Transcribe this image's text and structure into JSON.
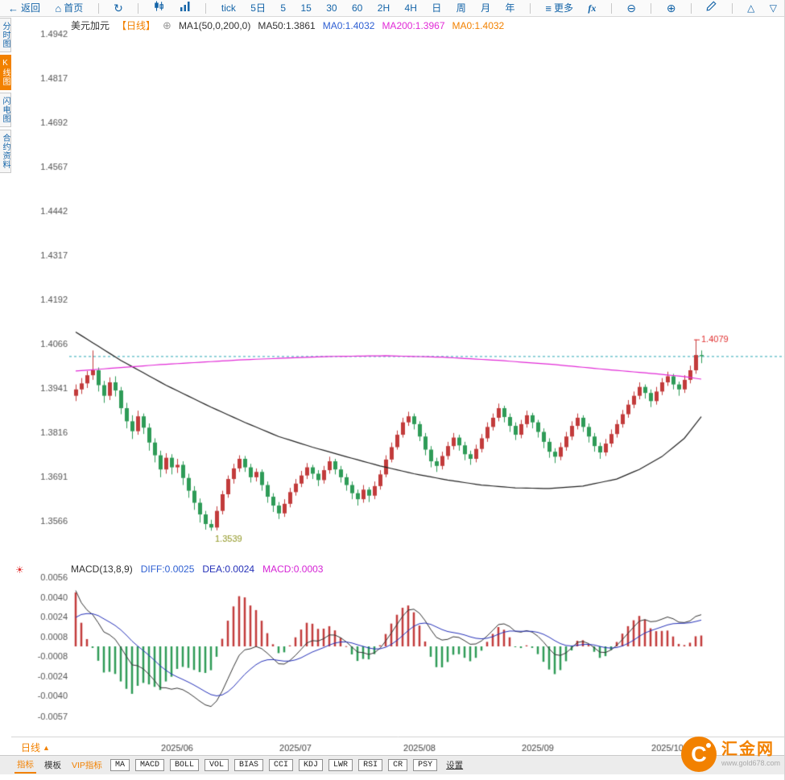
{
  "colors": {
    "accent-orange": "#f28100",
    "toolbar-blue": "#1464a8",
    "up-red": "#c23b3b",
    "down-green": "#2e9b57",
    "ma50-black": "#222222",
    "ma200-magenta": "#e12ad6",
    "diff-blue": "#2e5fd2",
    "dea-blue": "#2430b8",
    "macd-magenta": "#d524d5",
    "last-price-teal": "#2aa7b5",
    "annotation-red": "#e03131",
    "annotation-olive": "#8f9520",
    "axis-text": "#555555",
    "date-text": "#444444"
  },
  "icons": {
    "back": "←",
    "home": "⌂",
    "refresh": "↻",
    "menu": "≡",
    "zoom_out": "⊖",
    "zoom_in": "⊕",
    "up": "△",
    "down": "▽",
    "add": "⊕",
    "sun": "☀",
    "dropdown_up": "▲",
    "brand_mark": "C"
  },
  "top_toolbar": {
    "back": "返回",
    "home": "首页",
    "intervals": [
      "tick",
      "5日",
      "5",
      "15",
      "30",
      "60",
      "2H",
      "4H",
      "日",
      "周",
      "月",
      "年"
    ],
    "more": "更多",
    "fx": "fx"
  },
  "side_tabs": [
    {
      "label": "分时图",
      "active": false
    },
    {
      "label": "K线图",
      "active": true
    },
    {
      "label": "闪电图",
      "active": false
    },
    {
      "label": "合约资料",
      "active": false
    }
  ],
  "chart_header": {
    "symbol": "美元加元",
    "period": "【日线】",
    "ma_settings": "MA1(50,0,200,0)",
    "ma_values": [
      {
        "text": "MA50:1.3861"
      },
      {
        "text": "MA0:1.4032"
      },
      {
        "text": "MA200:1.3967"
      },
      {
        "text": "MA0:1.4032"
      }
    ]
  },
  "macd_header": {
    "title": "MACD(13,8,9)",
    "values": [
      {
        "text": "DIFF:0.0025"
      },
      {
        "text": "DEA:0.0024"
      },
      {
        "text": "MACD:0.0003"
      }
    ]
  },
  "bottom_axis": {
    "period_label": "日线"
  },
  "bottom_toolbar": {
    "tabs": [
      "指标",
      "模板",
      "VIP指标"
    ],
    "indicators": [
      "MA",
      "MACD",
      "BOLL",
      "VOL",
      "BIAS",
      "CCI",
      "KDJ",
      "LWR",
      "RSI",
      "CR",
      "PSY"
    ],
    "settings": "设置"
  },
  "logo": {
    "name": "汇金网",
    "url": "www.gold678.com"
  },
  "chart_data": {
    "type": "candlestick",
    "title": "美元加元 日线 (USD/CAD Daily)",
    "y_axis": {
      "ticks": [
        "1.4942",
        "1.4817",
        "1.4692",
        "1.4567",
        "1.4442",
        "1.4317",
        "1.4192",
        "1.4066",
        "1.3941",
        "1.3816",
        "1.3691",
        "1.3566"
      ],
      "tick_interval": 0.0125
    },
    "x_axis": {
      "labels": [
        {
          "i": 18,
          "t": "2025/06"
        },
        {
          "i": 39,
          "t": "2025/07"
        },
        {
          "i": 61,
          "t": "2025/08"
        },
        {
          "i": 82,
          "t": "2025/09"
        },
        {
          "i": 105,
          "t": "2025/10"
        }
      ]
    },
    "last_price": 1.4032,
    "annotations": [
      {
        "type": "high",
        "i": 110,
        "price": 1.4079,
        "text": "1.4079"
      },
      {
        "type": "low",
        "i": 24,
        "price": 1.3539,
        "text": "1.3539"
      }
    ],
    "overlays": {
      "ma50": {
        "current": 1.3861,
        "anchors": [
          [
            0,
            1.41
          ],
          [
            8,
            1.402
          ],
          [
            16,
            1.395
          ],
          [
            24,
            1.3888
          ],
          [
            30,
            1.3845
          ],
          [
            36,
            1.3805
          ],
          [
            42,
            1.3775
          ],
          [
            48,
            1.3748
          ],
          [
            54,
            1.3722
          ],
          [
            60,
            1.37
          ],
          [
            66,
            1.3682
          ],
          [
            72,
            1.3668
          ],
          [
            78,
            1.366
          ],
          [
            84,
            1.3658
          ],
          [
            90,
            1.3665
          ],
          [
            96,
            1.3685
          ],
          [
            100,
            1.3712
          ],
          [
            104,
            1.3748
          ],
          [
            108,
            1.38
          ],
          [
            111,
            1.3861
          ]
        ]
      },
      "ma200": {
        "current": 1.3967,
        "anchors": [
          [
            0,
            1.399
          ],
          [
            15,
            1.4008
          ],
          [
            30,
            1.4022
          ],
          [
            45,
            1.4031
          ],
          [
            55,
            1.4033
          ],
          [
            65,
            1.4029
          ],
          [
            75,
            1.402
          ],
          [
            85,
            1.4008
          ],
          [
            95,
            1.3993
          ],
          [
            103,
            1.3982
          ],
          [
            108,
            1.3974
          ],
          [
            111,
            1.3967
          ]
        ]
      }
    },
    "macd": {
      "diff": 0.0025,
      "dea": 0.0024,
      "macd": 0.0003,
      "ticks": [
        "0.0056",
        "0.0040",
        "0.0024",
        "0.0008",
        "-0.0008",
        "-0.0024",
        "-0.0040",
        "-0.0057"
      ],
      "periods": {
        "fast": 8,
        "slow": 13,
        "signal": 9
      },
      "seeds": {
        "ema_fast": 1.4015,
        "ema_slow": 1.3955,
        "dea": 0.0018
      }
    },
    "candles": [
      [
        1.392,
        1.3952,
        1.3905,
        1.3938
      ],
      [
        1.3938,
        1.397,
        1.3925,
        1.3955
      ],
      [
        1.3955,
        1.399,
        1.3942,
        1.3978
      ],
      [
        1.3978,
        1.4048,
        1.3965,
        1.3992
      ],
      [
        1.3992,
        1.4,
        1.3932,
        1.395
      ],
      [
        1.395,
        1.3962,
        1.39,
        1.392
      ],
      [
        1.392,
        1.3972,
        1.3908,
        1.3958
      ],
      [
        1.3958,
        1.3975,
        1.3918,
        1.3935
      ],
      [
        1.3935,
        1.3945,
        1.3868,
        1.3885
      ],
      [
        1.3885,
        1.39,
        1.3828,
        1.3848
      ],
      [
        1.3848,
        1.3865,
        1.3798,
        1.382
      ],
      [
        1.382,
        1.3878,
        1.381,
        1.3862
      ],
      [
        1.3862,
        1.387,
        1.3812,
        1.383
      ],
      [
        1.383,
        1.3842,
        1.3765,
        1.3788
      ],
      [
        1.3788,
        1.38,
        1.3732,
        1.3752
      ],
      [
        1.3752,
        1.3765,
        1.369,
        1.3712
      ],
      [
        1.3712,
        1.3758,
        1.37,
        1.3745
      ],
      [
        1.3745,
        1.3755,
        1.3698,
        1.3718
      ],
      [
        1.3718,
        1.3742,
        1.3702,
        1.3725
      ],
      [
        1.3725,
        1.3735,
        1.3668,
        1.3688
      ],
      [
        1.3688,
        1.37,
        1.3632,
        1.3652
      ],
      [
        1.3652,
        1.3665,
        1.3598,
        1.3618
      ],
      [
        1.3618,
        1.363,
        1.3562,
        1.3585
      ],
      [
        1.3585,
        1.3595,
        1.3542,
        1.3558
      ],
      [
        1.3558,
        1.357,
        1.3539,
        1.3548
      ],
      [
        1.3548,
        1.3608,
        1.354,
        1.3595
      ],
      [
        1.3595,
        1.3652,
        1.3585,
        1.3642
      ],
      [
        1.3642,
        1.3695,
        1.3632,
        1.3685
      ],
      [
        1.3685,
        1.3728,
        1.3672,
        1.3715
      ],
      [
        1.3715,
        1.3752,
        1.3705,
        1.3742
      ],
      [
        1.3742,
        1.375,
        1.3705,
        1.3718
      ],
      [
        1.3718,
        1.3728,
        1.3675,
        1.369
      ],
      [
        1.369,
        1.3715,
        1.3678,
        1.3705
      ],
      [
        1.3705,
        1.3712,
        1.3652,
        1.3668
      ],
      [
        1.3668,
        1.3678,
        1.3618,
        1.3635
      ],
      [
        1.3635,
        1.3645,
        1.3592,
        1.361
      ],
      [
        1.361,
        1.362,
        1.3572,
        1.3588
      ],
      [
        1.3588,
        1.3628,
        1.3578,
        1.3615
      ],
      [
        1.3615,
        1.366,
        1.3605,
        1.3648
      ],
      [
        1.3648,
        1.3685,
        1.3638,
        1.3672
      ],
      [
        1.3672,
        1.3708,
        1.3662,
        1.3695
      ],
      [
        1.3695,
        1.373,
        1.3685,
        1.3718
      ],
      [
        1.3718,
        1.3725,
        1.3685,
        1.37
      ],
      [
        1.37,
        1.371,
        1.3665,
        1.3682
      ],
      [
        1.3682,
        1.3722,
        1.3672,
        1.371
      ],
      [
        1.371,
        1.3748,
        1.37,
        1.3735
      ],
      [
        1.3735,
        1.3742,
        1.3698,
        1.3712
      ],
      [
        1.3712,
        1.3722,
        1.3675,
        1.369
      ],
      [
        1.369,
        1.37,
        1.3652,
        1.3668
      ],
      [
        1.3668,
        1.3678,
        1.3628,
        1.3645
      ],
      [
        1.3645,
        1.3655,
        1.361,
        1.3628
      ],
      [
        1.3628,
        1.3668,
        1.3618,
        1.3655
      ],
      [
        1.3655,
        1.3662,
        1.362,
        1.3638
      ],
      [
        1.3638,
        1.3678,
        1.3628,
        1.3665
      ],
      [
        1.3665,
        1.371,
        1.3655,
        1.3698
      ],
      [
        1.3698,
        1.3752,
        1.369,
        1.374
      ],
      [
        1.374,
        1.3788,
        1.3732,
        1.3775
      ],
      [
        1.3775,
        1.3822,
        1.3768,
        1.381
      ],
      [
        1.381,
        1.3858,
        1.3802,
        1.3845
      ],
      [
        1.3845,
        1.3875,
        1.3835,
        1.3862
      ],
      [
        1.3862,
        1.387,
        1.3825,
        1.384
      ],
      [
        1.384,
        1.3848,
        1.3792,
        1.3805
      ],
      [
        1.3805,
        1.3815,
        1.3752,
        1.3768
      ],
      [
        1.3768,
        1.3778,
        1.3718,
        1.3735
      ],
      [
        1.3735,
        1.3745,
        1.3705,
        1.3722
      ],
      [
        1.3722,
        1.3762,
        1.3712,
        1.375
      ],
      [
        1.375,
        1.379,
        1.374,
        1.3778
      ],
      [
        1.3778,
        1.3815,
        1.3768,
        1.3802
      ],
      [
        1.3802,
        1.381,
        1.3765,
        1.378
      ],
      [
        1.378,
        1.379,
        1.3738,
        1.3755
      ],
      [
        1.3755,
        1.3765,
        1.3725,
        1.3742
      ],
      [
        1.3742,
        1.3782,
        1.3732,
        1.377
      ],
      [
        1.377,
        1.3812,
        1.376,
        1.38
      ],
      [
        1.38,
        1.3845,
        1.379,
        1.3832
      ],
      [
        1.3832,
        1.387,
        1.3822,
        1.3858
      ],
      [
        1.3858,
        1.3898,
        1.3848,
        1.3885
      ],
      [
        1.3885,
        1.3892,
        1.3845,
        1.386
      ],
      [
        1.386,
        1.387,
        1.3818,
        1.3835
      ],
      [
        1.3835,
        1.3845,
        1.3795,
        1.381
      ],
      [
        1.381,
        1.3852,
        1.38,
        1.384
      ],
      [
        1.384,
        1.3878,
        1.383,
        1.3865
      ],
      [
        1.3865,
        1.3872,
        1.3828,
        1.3845
      ],
      [
        1.3845,
        1.3852,
        1.3802,
        1.3818
      ],
      [
        1.3818,
        1.3828,
        1.3772,
        1.379
      ],
      [
        1.379,
        1.38,
        1.3745,
        1.3762
      ],
      [
        1.3762,
        1.3772,
        1.373,
        1.3748
      ],
      [
        1.3748,
        1.3788,
        1.3738,
        1.3775
      ],
      [
        1.3775,
        1.3818,
        1.3765,
        1.3805
      ],
      [
        1.3805,
        1.3848,
        1.3795,
        1.3835
      ],
      [
        1.3835,
        1.387,
        1.3825,
        1.3858
      ],
      [
        1.3858,
        1.3865,
        1.3818,
        1.3832
      ],
      [
        1.3832,
        1.3842,
        1.3788,
        1.3805
      ],
      [
        1.3805,
        1.3815,
        1.3762,
        1.3778
      ],
      [
        1.3778,
        1.3788,
        1.3742,
        1.376
      ],
      [
        1.376,
        1.3798,
        1.375,
        1.3785
      ],
      [
        1.3785,
        1.3825,
        1.3775,
        1.3812
      ],
      [
        1.3812,
        1.3852,
        1.3802,
        1.384
      ],
      [
        1.384,
        1.388,
        1.383,
        1.3868
      ],
      [
        1.3868,
        1.3908,
        1.3858,
        1.3895
      ],
      [
        1.3895,
        1.3932,
        1.3885,
        1.392
      ],
      [
        1.392,
        1.3958,
        1.391,
        1.3945
      ],
      [
        1.3945,
        1.3952,
        1.3912,
        1.3928
      ],
      [
        1.3928,
        1.3938,
        1.3888,
        1.3905
      ],
      [
        1.3905,
        1.3945,
        1.3895,
        1.3932
      ],
      [
        1.3932,
        1.397,
        1.3922,
        1.3958
      ],
      [
        1.3958,
        1.3988,
        1.3948,
        1.3975
      ],
      [
        1.3975,
        1.3982,
        1.3938,
        1.3952
      ],
      [
        1.3952,
        1.396,
        1.392,
        1.3938
      ],
      [
        1.3938,
        1.3978,
        1.3928,
        1.3965
      ],
      [
        1.3965,
        1.4005,
        1.3955,
        1.3992
      ],
      [
        1.3992,
        1.4079,
        1.3982,
        1.4035
      ],
      [
        1.4035,
        1.4048,
        1.4012,
        1.4032
      ]
    ]
  }
}
